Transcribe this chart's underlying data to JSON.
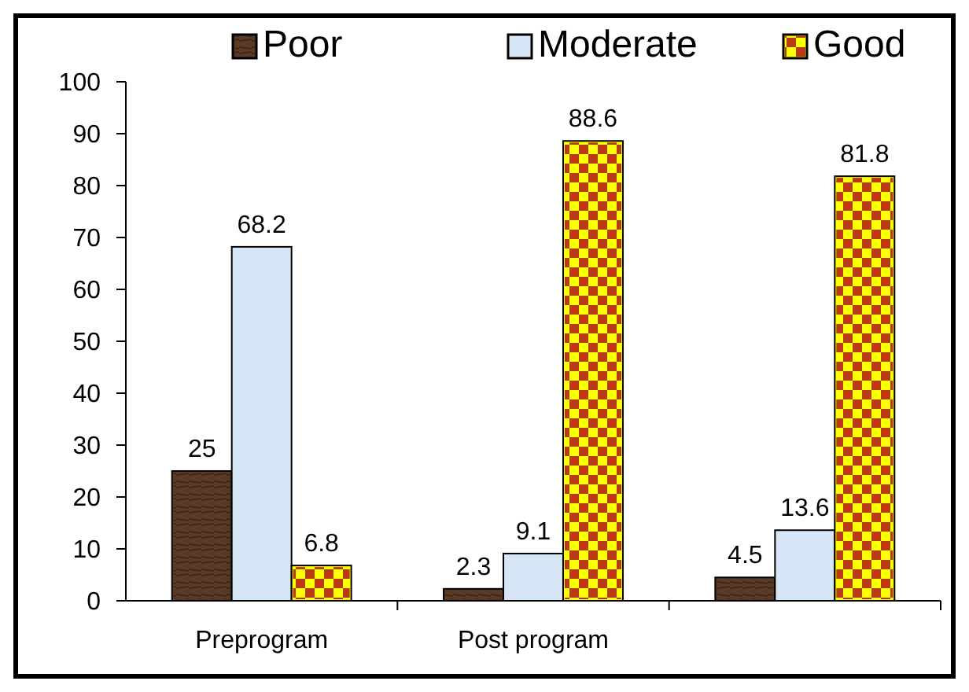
{
  "chart_data": {
    "type": "bar",
    "categories": [
      "Preprogram",
      "Post program",
      null
    ],
    "series": [
      {
        "name": "Poor",
        "color": "#5a3a24",
        "values": [
          25,
          2.3,
          4.5
        ]
      },
      {
        "name": "Moderate",
        "color": "#d6e6f6",
        "values": [
          68.2,
          9.1,
          13.6
        ]
      },
      {
        "name": "Good",
        "color": "#ffff00",
        "values": [
          6.8,
          88.6,
          81.8
        ]
      }
    ],
    "ylim": [
      0,
      100
    ],
    "yticks": [
      0,
      10,
      20,
      30,
      40,
      50,
      60,
      70,
      80,
      90,
      100
    ],
    "data_labels": true,
    "legend": "top",
    "grid": false
  }
}
